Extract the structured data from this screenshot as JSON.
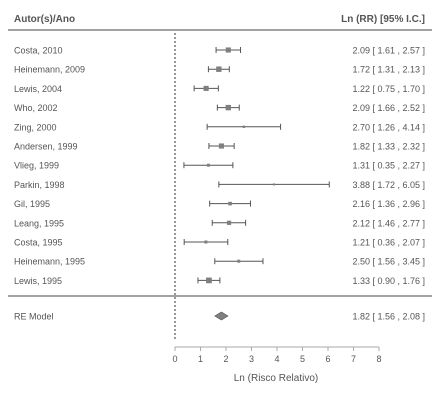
{
  "chart_data": {
    "type": "forest",
    "header_left": "Autor(s)/Ano",
    "header_right": "Ln (RR) [95% I.C.]",
    "xlabel": "Ln (Risco Relativo)",
    "xlim": [
      0,
      8
    ],
    "xticks": [
      "0",
      "1",
      "2",
      "3",
      "4",
      "5",
      "6",
      "7",
      "8"
    ],
    "reference_line": 0,
    "studies": [
      {
        "label": "Costa, 2010",
        "estimate": 2.09,
        "lower": 1.61,
        "upper": 2.57,
        "ci_text": "2.09 [ 1.61 , 2.57 ]",
        "weight": 0.6
      },
      {
        "label": "Heinemann, 2009",
        "estimate": 1.72,
        "lower": 1.31,
        "upper": 2.13,
        "ci_text": "1.72 [ 1.31 , 2.13 ]",
        "weight": 0.65
      },
      {
        "label": "Lewis, 2004",
        "estimate": 1.22,
        "lower": 0.75,
        "upper": 1.7,
        "ci_text": "1.22 [ 0.75 , 1.70 ]",
        "weight": 0.6
      },
      {
        "label": "Who, 2002",
        "estimate": 2.09,
        "lower": 1.66,
        "upper": 2.52,
        "ci_text": "2.09 [ 1.66 , 2.52 ]",
        "weight": 0.65
      },
      {
        "label": "Zing, 2000",
        "estimate": 2.7,
        "lower": 1.26,
        "upper": 4.14,
        "ci_text": "2.70 [ 1.26 , 4.14 ]",
        "weight": 0.15
      },
      {
        "label": "Andersen, 1999",
        "estimate": 1.82,
        "lower": 1.33,
        "upper": 2.32,
        "ci_text": "1.82 [ 1.33 , 2.32 ]",
        "weight": 0.6
      },
      {
        "label": "Vlieg, 1999",
        "estimate": 1.31,
        "lower": 0.35,
        "upper": 2.27,
        "ci_text": "1.31 [ 0.35 , 2.27 ]",
        "weight": 0.25
      },
      {
        "label": "Parkin, 1998",
        "estimate": 3.88,
        "lower": 1.72,
        "upper": 6.05,
        "ci_text": "3.88 [ 1.72 , 6.05 ]",
        "weight": 0.08
      },
      {
        "label": "Gil, 1995",
        "estimate": 2.16,
        "lower": 1.36,
        "upper": 2.96,
        "ci_text": "2.16 [ 1.36 , 2.96 ]",
        "weight": 0.35
      },
      {
        "label": "Leang, 1995",
        "estimate": 2.12,
        "lower": 1.46,
        "upper": 2.77,
        "ci_text": "2.12 [ 1.46 , 2.77 ]",
        "weight": 0.45
      },
      {
        "label": "Costa, 1995",
        "estimate": 1.21,
        "lower": 0.36,
        "upper": 2.07,
        "ci_text": "1.21 [ 0.36 , 2.07 ]",
        "weight": 0.25
      },
      {
        "label": "Heinemann, 1995",
        "estimate": 2.5,
        "lower": 1.56,
        "upper": 3.45,
        "ci_text": "2.50 [ 1.56 , 3.45 ]",
        "weight": 0.25
      },
      {
        "label": "Lewis, 1995",
        "estimate": 1.33,
        "lower": 0.9,
        "upper": 1.76,
        "ci_text": "1.33 [ 0.90 , 1.76 ]",
        "weight": 0.7
      }
    ],
    "summary": {
      "label": "RE Model",
      "estimate": 1.82,
      "lower": 1.56,
      "upper": 2.08,
      "ci_text": "1.82 [ 1.56 , 2.08 ]"
    },
    "colors": {
      "marker": "#7f7f7f",
      "line": "#555555",
      "text": "#555555",
      "axis": "#aaaaaa"
    },
    "grid": false
  }
}
